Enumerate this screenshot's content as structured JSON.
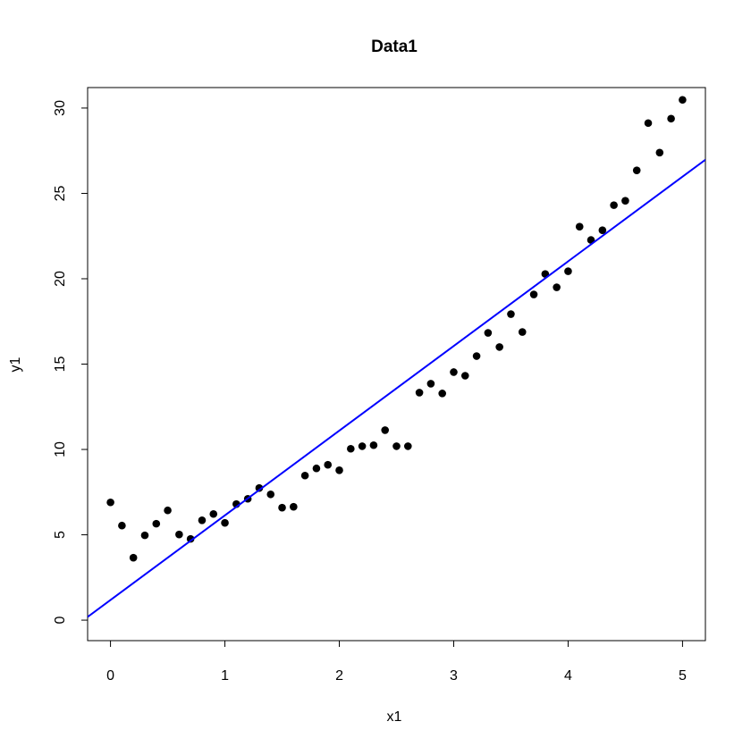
{
  "chart_data": {
    "type": "scatter",
    "title": "Data1",
    "x_label": "x1",
    "y_label": "y1",
    "x": [
      0,
      0.1,
      0.2,
      0.3,
      0.4,
      0.5,
      0.6,
      0.7,
      0.8,
      0.9,
      1,
      1.1,
      1.2,
      1.3,
      1.4,
      1.5,
      1.6,
      1.7,
      1.8,
      1.9,
      2,
      2.1,
      2.2,
      2.3,
      2.4,
      2.5,
      2.6,
      2.7,
      2.8,
      2.9,
      3,
      3.1,
      3.2,
      3.3,
      3.4,
      3.5,
      3.6,
      3.7,
      3.8,
      3.9,
      4,
      4.1,
      4.2,
      4.3,
      4.4,
      4.5,
      4.6,
      4.7,
      4.8,
      4.9,
      5
    ],
    "values": [
      6.9,
      5.54,
      3.66,
      4.97,
      5.65,
      6.43,
      5.02,
      4.76,
      5.85,
      6.22,
      5.7,
      6.8,
      7.11,
      7.74,
      7.37,
      6.59,
      6.64,
      8.47,
      8.89,
      9.1,
      8.78,
      10.04,
      10.19,
      10.25,
      11.13,
      10.19,
      10.19,
      13.33,
      13.85,
      13.28,
      14.53,
      14.32,
      15.47,
      16.83,
      16,
      17.93,
      16.88,
      19.08,
      20.28,
      19.5,
      20.44,
      23.05,
      22.27,
      22.84,
      24.31,
      24.57,
      26.35,
      29.12,
      27.39,
      29.38,
      30.48
    ],
    "color": "#000000",
    "fit_line": {
      "intercept": 1.18,
      "slope": 4.96,
      "color": "#0000ff"
    },
    "xlim": [
      -0.2,
      5.2
    ],
    "xticks": [
      0,
      1,
      2,
      3,
      4,
      5
    ],
    "ylim": [
      -1.2,
      31.2
    ],
    "yticks": [
      0,
      5,
      10,
      15,
      20,
      25,
      30
    ],
    "grid": false
  }
}
